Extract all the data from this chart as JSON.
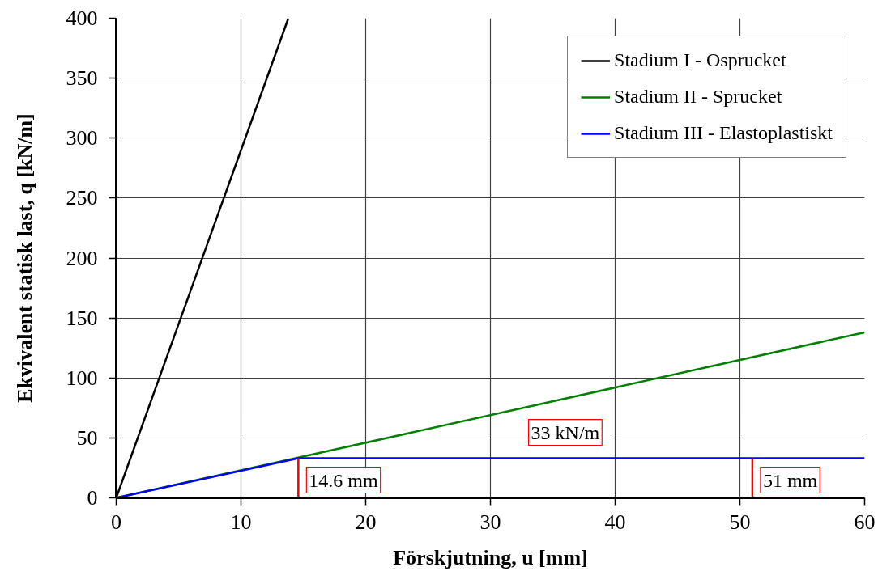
{
  "chart_data": {
    "type": "line",
    "xlabel": "Förskjutning, u [mm]",
    "ylabel": "Ekvivalent statisk last, q [kN/m]",
    "xlim": [
      0,
      60
    ],
    "ylim": [
      0,
      400
    ],
    "xticks": [
      0,
      10,
      20,
      30,
      40,
      50,
      60
    ],
    "yticks": [
      0,
      50,
      100,
      150,
      200,
      250,
      300,
      350,
      400
    ],
    "grid": true,
    "legend": "top right",
    "series": [
      {
        "name": "Stadium I - Osprucket",
        "color": "#000000",
        "x": [
          0,
          13.8
        ],
        "values": [
          0,
          400
        ]
      },
      {
        "name": "Stadium II - Sprucket",
        "color": "#008000",
        "x": [
          0,
          60
        ],
        "values": [
          0,
          138
        ]
      },
      {
        "name": "Stadium III - Elastoplastiskt",
        "color": "#0000ff",
        "x": [
          0,
          14.6,
          60
        ],
        "values": [
          0,
          33,
          33
        ]
      },
      {
        "color": "#ff0000",
        "x": [
          14.6,
          14.6
        ],
        "values": [
          0,
          33
        ]
      },
      {
        "color": "#ff0000",
        "x": [
          51,
          51
        ],
        "values": [
          0,
          33
        ]
      }
    ],
    "annotations": [
      {
        "text": "14.6 mm",
        "x": 14.6,
        "y": 0
      },
      {
        "text": "51 mm",
        "x": 51,
        "y": 0
      },
      {
        "text": "33 kN/m",
        "x": 36,
        "y": 33
      }
    ]
  }
}
